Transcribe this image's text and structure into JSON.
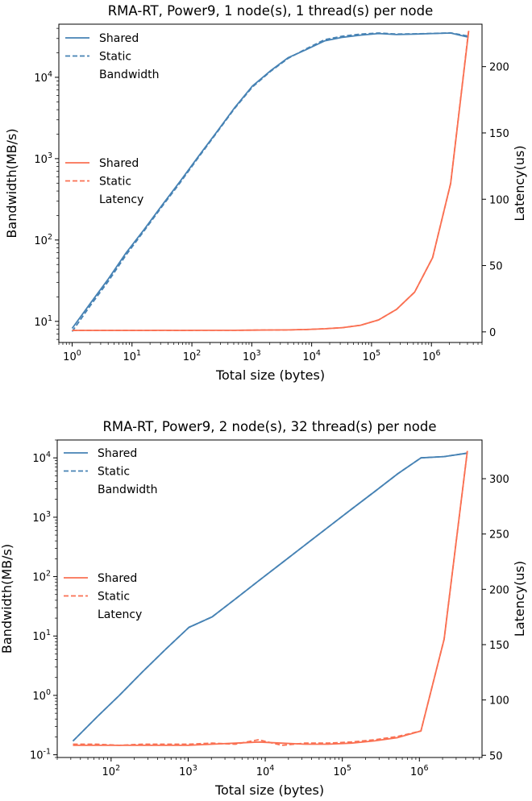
{
  "colors": {
    "bandwidth": "#4682b4",
    "latency": "#fa7052",
    "bandwidth_light": "#aac8e6",
    "latency_light": "#fcb4a2"
  },
  "chart_data": [
    {
      "type": "line",
      "title": "RMA-RT, Power9, 1 node(s), 1 thread(s) per node",
      "xlabel": "Total size (bytes)",
      "ylabel_left": "Bandwidth(MB/s)",
      "ylabel_right": "Latency(us)",
      "xscale": "log",
      "yscale_left": "log",
      "xlim": [
        0.6,
        7000000
      ],
      "ylim_left": [
        5.5,
        45000
      ],
      "ylim_right": [
        -8,
        232
      ],
      "x_ticks": [
        "10^0",
        "10^1",
        "10^2",
        "10^3",
        "10^4",
        "10^5",
        "10^6"
      ],
      "y_left_ticks": [
        "10^1",
        "10^2",
        "10^3",
        "10^4"
      ],
      "y_right_ticks": [
        0,
        50,
        100,
        150,
        200
      ],
      "grid": false,
      "legends": [
        {
          "entries": [
            "Shared",
            "Static"
          ],
          "title": "Bandwidth",
          "position": "top-left"
        },
        {
          "entries": [
            "Shared",
            "Static"
          ],
          "title": "Latency",
          "position": "middle-left"
        }
      ],
      "x": [
        1,
        2,
        4,
        8,
        16,
        32,
        64,
        128,
        256,
        512,
        1024,
        2048,
        4096,
        8192,
        16384,
        32768,
        65536,
        131072,
        262144,
        524288,
        1048576,
        2097152,
        4194304
      ],
      "series": [
        {
          "name": "Shared",
          "axis": "left",
          "metric": "Bandwidth",
          "style": "solid",
          "values": [
            8.2,
            16.5,
            33,
            70,
            135,
            270,
            530,
            1060,
            2100,
            4200,
            7800,
            12000,
            17500,
            22000,
            28000,
            31000,
            33000,
            34500,
            33500,
            34000,
            34500,
            35000,
            31000
          ]
        },
        {
          "name": "Static",
          "axis": "left",
          "metric": "Bandwidth",
          "style": "dashed",
          "values": [
            7.5,
            15.5,
            31,
            66,
            130,
            260,
            510,
            1030,
            2050,
            4100,
            7600,
            11800,
            17200,
            22500,
            29000,
            32000,
            34000,
            35000,
            34000,
            34200,
            34600,
            35200,
            32000
          ]
        },
        {
          "name": "Shared",
          "axis": "right",
          "metric": "Latency",
          "style": "solid",
          "values": [
            1.1,
            1.1,
            1.1,
            1.1,
            1.1,
            1.2,
            1.1,
            1.2,
            1.2,
            1.2,
            1.3,
            1.4,
            1.5,
            1.8,
            2.3,
            3.2,
            5,
            9,
            17,
            30,
            56,
            112,
            227
          ]
        },
        {
          "name": "Static",
          "axis": "right",
          "metric": "Latency",
          "style": "dashed",
          "values": [
            1.1,
            1.1,
            1.1,
            1.1,
            1.1,
            1.2,
            1.1,
            1.2,
            1.2,
            1.2,
            1.3,
            1.4,
            1.5,
            1.8,
            2.3,
            3.2,
            5,
            9,
            17,
            30,
            56,
            112,
            228
          ]
        }
      ]
    },
    {
      "type": "line",
      "title": "RMA-RT, Power9, 2 node(s), 32 thread(s) per node",
      "xlabel": "Total size (bytes)",
      "ylabel_left": "Bandwidth(MB/s)",
      "ylabel_right": "Latency(us)",
      "xscale": "log",
      "yscale_left": "log",
      "xlim": [
        20,
        6500000
      ],
      "ylim_left": [
        0.09,
        20000
      ],
      "ylim_right": [
        48,
        335
      ],
      "x_ticks": [
        "10^2",
        "10^3",
        "10^4",
        "10^5",
        "10^6"
      ],
      "y_left_ticks": [
        "10^-1",
        "10^0",
        "10^1",
        "10^2",
        "10^3",
        "10^4"
      ],
      "y_right_ticks": [
        50,
        100,
        150,
        200,
        250,
        300
      ],
      "grid": false,
      "legends": [
        {
          "entries": [
            "Shared",
            "Static"
          ],
          "title": "Bandwidth",
          "position": "top-left"
        },
        {
          "entries": [
            "Shared",
            "Static"
          ],
          "title": "Latency",
          "position": "middle-left"
        }
      ],
      "x": [
        32,
        64,
        128,
        256,
        512,
        1024,
        2048,
        4096,
        8192,
        16384,
        32768,
        65536,
        131072,
        262144,
        524288,
        1048576,
        2097152,
        4194304
      ],
      "series": [
        {
          "name": "Shared",
          "axis": "left",
          "metric": "Bandwidth",
          "style": "solid",
          "values": [
            0.17,
            0.42,
            1,
            2.5,
            6,
            14,
            21,
            42,
            85,
            170,
            340,
            680,
            1360,
            2700,
            5400,
            10000,
            10500,
            12000
          ]
        },
        {
          "name": "Static",
          "axis": "left",
          "metric": "Bandwidth",
          "style": "dashed",
          "values": [
            0.17,
            0.42,
            1,
            2.5,
            6,
            14,
            21,
            42,
            85,
            170,
            340,
            680,
            1360,
            2700,
            5400,
            10000,
            10500,
            12000
          ]
        },
        {
          "name": "Shared",
          "axis": "right",
          "metric": "Latency",
          "style": "solid",
          "values": [
            59,
            59,
            59,
            59,
            59,
            59,
            60,
            61,
            62,
            61,
            60,
            60,
            61,
            63,
            66,
            72,
            155,
            325
          ]
        },
        {
          "name": "Static",
          "axis": "right",
          "metric": "Latency",
          "style": "dashed",
          "values": [
            60,
            60,
            59,
            60,
            60,
            60,
            61,
            60,
            64,
            59,
            61,
            61,
            62,
            64,
            67,
            72,
            155,
            325
          ]
        }
      ]
    }
  ]
}
